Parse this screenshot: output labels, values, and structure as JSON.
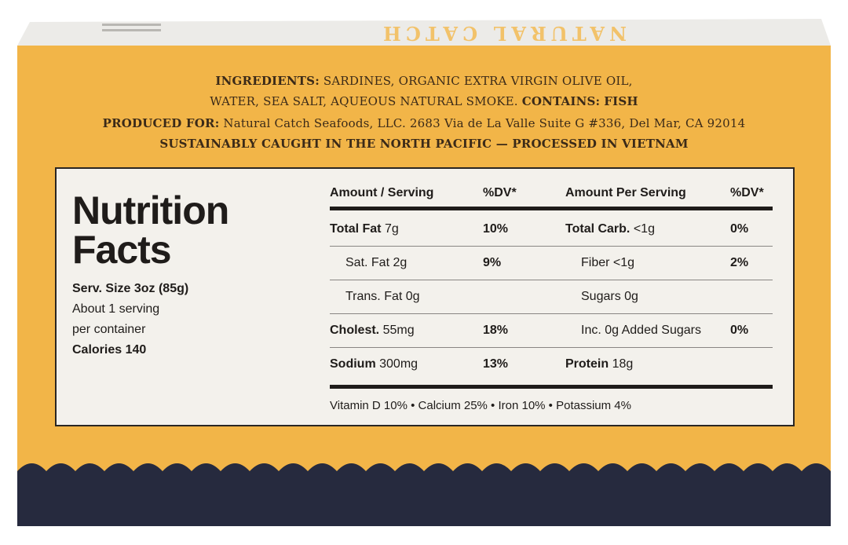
{
  "top_flap": {
    "brand": "NATURAL CATCH"
  },
  "ingredients": {
    "label": "INGREDIENTS:",
    "text_line1": "SARDINES, ORGANIC EXTRA VIRGIN OLIVE OIL,",
    "text_line2": "WATER, SEA SALT, AQUEOUS NATURAL SMOKE.",
    "contains_label": "CONTAINS:",
    "contains": "FISH"
  },
  "produced": {
    "label": "PRODUCED FOR:",
    "text": "Natural Catch Seafoods, LLC. 2683 Via de La Valle Suite G #336, Del Mar, CA 92014"
  },
  "origin": "SUSTAINABLY CAUGHT IN THE NORTH PACIFIC — PROCESSED IN VIETNAM",
  "nutrition": {
    "title_line1": "Nutrition",
    "title_line2": "Facts",
    "serving_size": "Serv. Size 3oz (85g)",
    "servings_line1": "About 1 serving",
    "servings_line2": "per container",
    "calories": "Calories 140",
    "headers": [
      "Amount / Serving",
      "%DV*",
      "Amount Per Serving",
      "%DV*"
    ],
    "rows": [
      [
        {
          "name": "Total Fat",
          "amount": "7g",
          "dv": "10%",
          "bold": true
        },
        {
          "name": "Total Carb.",
          "amount": "<1g",
          "dv": "0%",
          "bold": true
        }
      ],
      [
        {
          "name": "Sat. Fat",
          "amount": "2g",
          "dv": "9%",
          "bold": false
        },
        {
          "name": "Fiber",
          "amount": "<1g",
          "dv": "2%",
          "bold": false
        }
      ],
      [
        {
          "name": "Trans. Fat",
          "amount": "0g",
          "bold": false
        },
        {
          "name": "Sugars",
          "amount": "0g",
          "bold": false
        }
      ],
      [
        {
          "name": "Cholest.",
          "amount": "55mg",
          "dv": "18%",
          "bold": true
        },
        {
          "name": "Inc. 0g Added Sugars",
          "dv": "0%",
          "bold": false
        }
      ],
      [
        {
          "name": "Sodium",
          "amount": "300mg",
          "dv": "13%",
          "bold": true
        },
        {
          "name": "Protein",
          "amount": "18g",
          "bold": true
        }
      ]
    ],
    "footer": "Vitamin D 10% • Calcium 25% • Iron 10% • Potassium 4%"
  }
}
